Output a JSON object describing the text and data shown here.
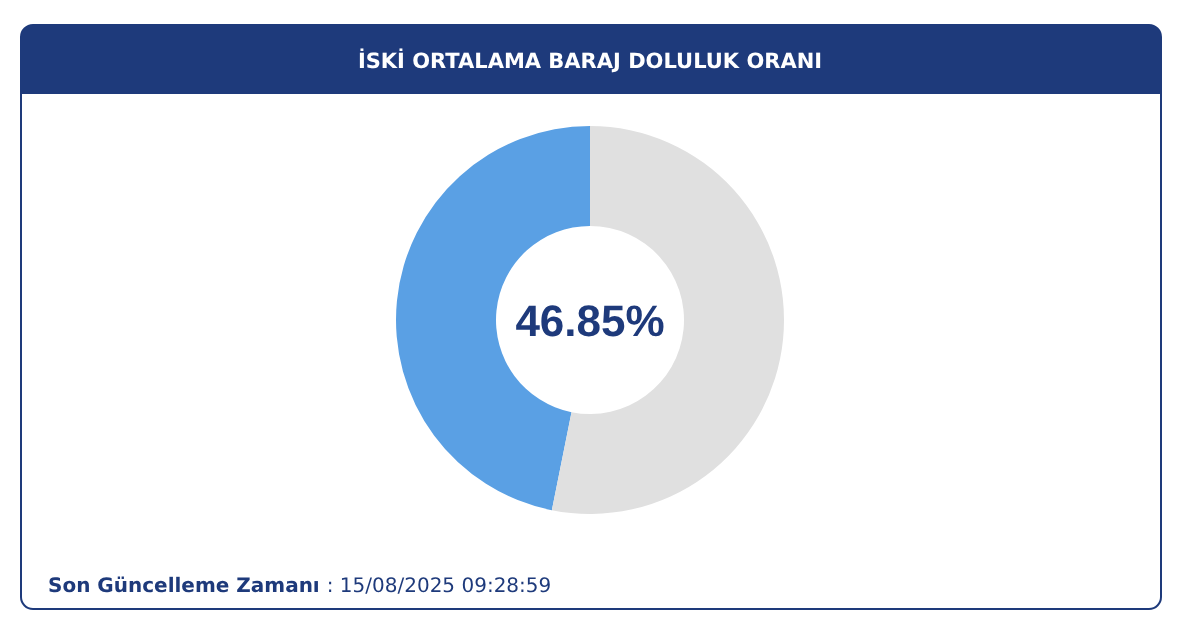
{
  "chart_data": {
    "type": "donut",
    "title": "İSKİ ORTALAMA BARAJ DOLULUK ORANI",
    "categories": [
      null,
      null
    ],
    "values": [
      46.85,
      53.15
    ],
    "colors": [
      "#5aa0e4",
      "#e0e0e0"
    ],
    "annotations": [
      "46.85%",
      "Son Güncelleme Zamanı : 15/08/2025 09:28:59"
    ]
  }
}
